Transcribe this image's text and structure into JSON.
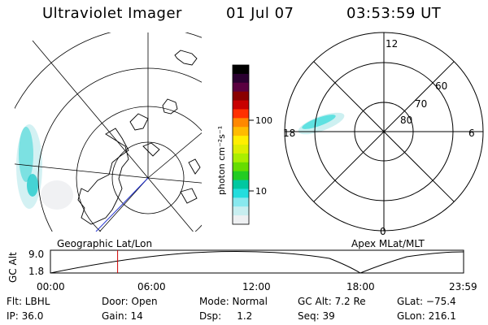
{
  "header": {
    "title": "Ultraviolet Imager",
    "date": "01 Jul 07",
    "time": "03:53:59 UT"
  },
  "colorbar": {
    "unit_label": "photon cm⁻²s⁻¹",
    "ticks": [
      "100",
      "10"
    ],
    "colors": [
      "#000000",
      "#2a0030",
      "#5a0040",
      "#8a0000",
      "#c80000",
      "#ff3000",
      "#ff8800",
      "#ffbb00",
      "#ffee00",
      "#ddee00",
      "#aaee00",
      "#66dd00",
      "#22cc22",
      "#00c8a0",
      "#22dddd",
      "#88e8ee",
      "#c8eef0",
      "#eef0f2"
    ]
  },
  "left_map": {
    "caption": "Geographic Lat/Lon"
  },
  "right_map": {
    "caption": "Apex MLat/MLT",
    "ring_labels": [
      "80",
      "70",
      "60"
    ],
    "mlt_labels": {
      "top": "12",
      "right": "6",
      "bottom": "0",
      "left": "18"
    }
  },
  "gc_alt_plot": {
    "axis_title": "GC Alt",
    "y_ticks": [
      "9.0",
      "1.8"
    ],
    "x_ticks": [
      "00:00",
      "06:00",
      "12:00",
      "18:00",
      "23:59"
    ],
    "current_time_hours": 3.9,
    "marker_color": "#d00000"
  },
  "info": {
    "flt": "Flt: LBHL",
    "ip": "IP: 36.0",
    "door": "Door: Open",
    "gain": "Gain: 14",
    "mode": "Mode: Normal",
    "dsp": "Dsp:     1.2",
    "gc_alt": "GC Alt: 7.2 Re",
    "seq": "Seq: 39",
    "glat": "GLat: −75.4",
    "glon": "GLon: 216.1"
  }
}
